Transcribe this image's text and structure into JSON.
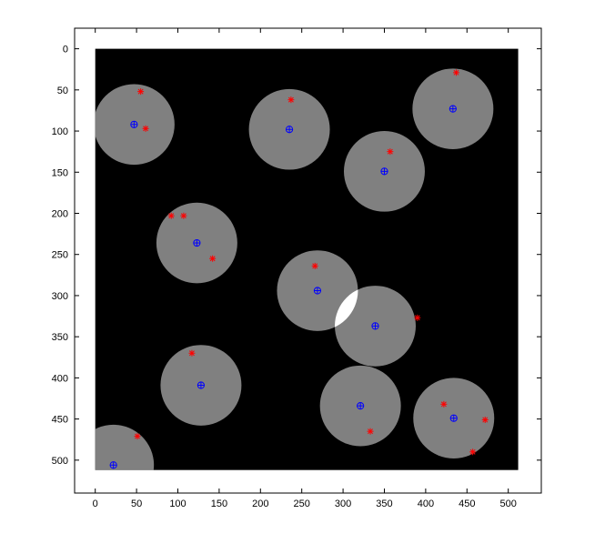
{
  "figure": {
    "background_color": "#ffffff",
    "axes_frame_color": "#000000"
  },
  "chart_data": {
    "type": "scatter",
    "title": "",
    "xlabel": "",
    "ylabel": "",
    "xlim": [
      -25,
      540
    ],
    "ylim": [
      540,
      -25
    ],
    "y_axis_reversed": true,
    "grid": false,
    "legend": "none",
    "x_ticks": [
      0,
      50,
      100,
      150,
      200,
      250,
      300,
      350,
      400,
      450,
      500
    ],
    "y_ticks": [
      0,
      50,
      100,
      150,
      200,
      250,
      300,
      350,
      400,
      450,
      500
    ],
    "image": {
      "extent": [
        0,
        512,
        0,
        512
      ],
      "background_color": "#000000",
      "disk_color": "#808080",
      "overlap_color": "#ffffff",
      "disks": [
        {
          "x": 47,
          "y": 92,
          "r": 49
        },
        {
          "x": 235,
          "y": 98,
          "r": 49
        },
        {
          "x": 433,
          "y": 73,
          "r": 49
        },
        {
          "x": 350,
          "y": 149,
          "r": 49
        },
        {
          "x": 123,
          "y": 236,
          "r": 49
        },
        {
          "x": 269,
          "y": 294,
          "r": 49
        },
        {
          "x": 339,
          "y": 337,
          "r": 49
        },
        {
          "x": 128,
          "y": 409,
          "r": 49
        },
        {
          "x": 321,
          "y": 434,
          "r": 49
        },
        {
          "x": 434,
          "y": 449,
          "r": 49
        },
        {
          "x": 22,
          "y": 506,
          "r": 49
        }
      ]
    },
    "series": [
      {
        "marker": "circle-plus",
        "color": "#0000ff",
        "points": [
          {
            "x": 47,
            "y": 92
          },
          {
            "x": 235,
            "y": 98
          },
          {
            "x": 433,
            "y": 73
          },
          {
            "x": 350,
            "y": 149
          },
          {
            "x": 123,
            "y": 236
          },
          {
            "x": 269,
            "y": 294
          },
          {
            "x": 339,
            "y": 337
          },
          {
            "x": 128,
            "y": 409
          },
          {
            "x": 321,
            "y": 434
          },
          {
            "x": 434,
            "y": 449
          },
          {
            "x": 22,
            "y": 506
          }
        ]
      },
      {
        "marker": "asterisk",
        "color": "#ff0000",
        "points": [
          {
            "x": 55,
            "y": 52
          },
          {
            "x": 61,
            "y": 97
          },
          {
            "x": 237,
            "y": 62
          },
          {
            "x": 437,
            "y": 29
          },
          {
            "x": 357,
            "y": 125
          },
          {
            "x": 92,
            "y": 203
          },
          {
            "x": 107,
            "y": 203
          },
          {
            "x": 142,
            "y": 255
          },
          {
            "x": 266,
            "y": 264
          },
          {
            "x": 390,
            "y": 327
          },
          {
            "x": 117,
            "y": 370
          },
          {
            "x": 333,
            "y": 465
          },
          {
            "x": 422,
            "y": 432
          },
          {
            "x": 472,
            "y": 451
          },
          {
            "x": 457,
            "y": 490
          },
          {
            "x": 51,
            "y": 471
          }
        ]
      }
    ]
  }
}
